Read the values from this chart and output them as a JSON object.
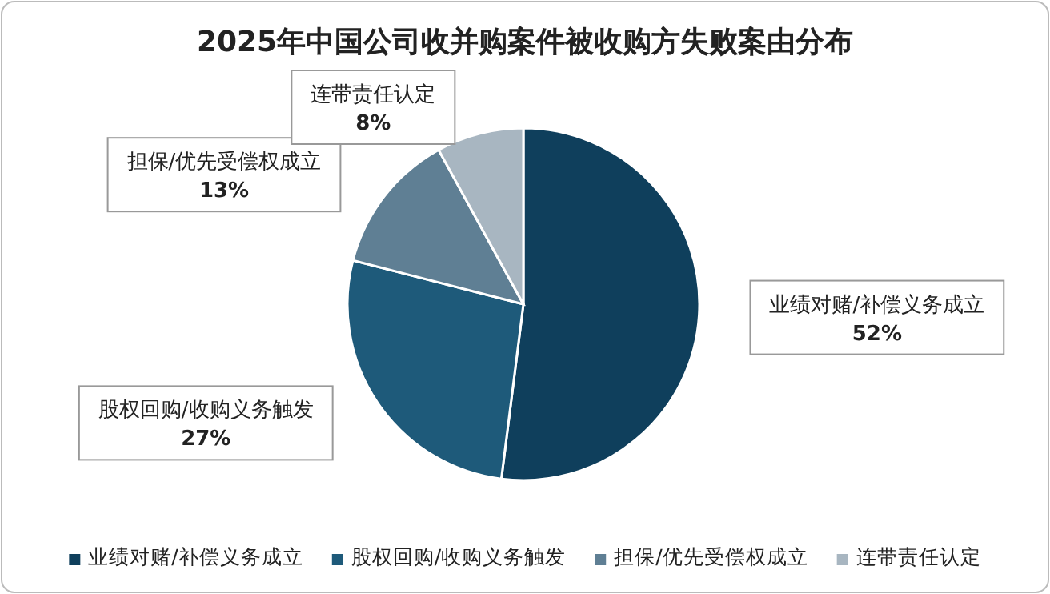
{
  "chart_data": {
    "type": "pie",
    "title": "2025年中国公司收并购案件被收购方失败案由分布",
    "categories": [
      "业绩对赌/补偿义务成立",
      "股权回购/收购义务触发",
      "担保/优先受偿权成立",
      "连带责任认定"
    ],
    "values": [
      52,
      27,
      13,
      8
    ],
    "colors": [
      "#0f3f5c",
      "#1e5a7a",
      "#5f7f94",
      "#a8b6c1"
    ],
    "value_labels": [
      "52%",
      "27%",
      "13%",
      "8%"
    ],
    "legend": "bottom"
  }
}
